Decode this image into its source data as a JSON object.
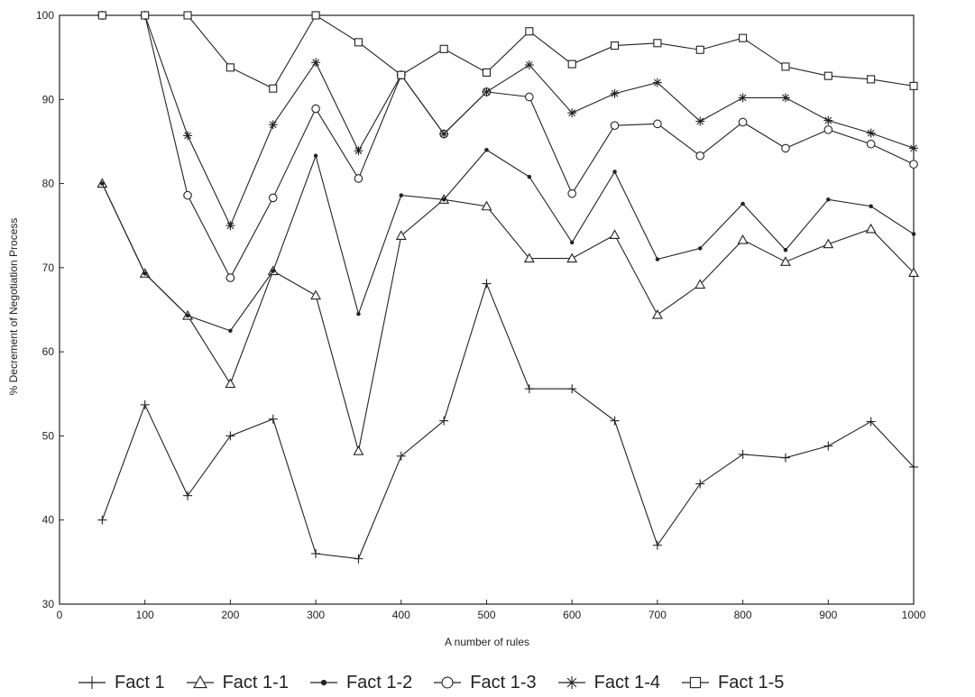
{
  "chart_data": {
    "type": "line",
    "title": "",
    "xlabel": "A number of rules",
    "ylabel": "% Decrement of Negotiation Process",
    "xlim": [
      0,
      1000
    ],
    "ylim": [
      30,
      100
    ],
    "x_ticks": [
      0,
      100,
      200,
      300,
      400,
      500,
      600,
      700,
      800,
      900,
      1000
    ],
    "y_ticks": [
      30,
      40,
      50,
      60,
      70,
      80,
      90,
      100
    ],
    "grid": false,
    "legend_position": "bottom",
    "x": [
      50,
      100,
      150,
      200,
      250,
      300,
      350,
      400,
      450,
      500,
      550,
      600,
      650,
      700,
      750,
      800,
      850,
      900,
      950,
      1000
    ],
    "series": [
      {
        "name": "Fact 1",
        "marker": "plus",
        "values": [
          40,
          53.7,
          42.9,
          50,
          52,
          36,
          35.4,
          47.6,
          51.8,
          68.1,
          55.6,
          55.6,
          51.8,
          37,
          44.3,
          47.8,
          47.4,
          48.8,
          51.7,
          46.3
        ]
      },
      {
        "name": "Fact 1-1",
        "marker": "triangle",
        "values": [
          80,
          69.3,
          64.3,
          56.2,
          69.6,
          66.7,
          48.2,
          73.8,
          78.1,
          77.3,
          71.1,
          71.1,
          73.9,
          64.4,
          68,
          73.3,
          70.7,
          72.8,
          74.6,
          69.4
        ]
      },
      {
        "name": "Fact 1-2",
        "marker": "dot",
        "values": [
          80,
          69.3,
          64.3,
          62.5,
          69.6,
          83.3,
          64.5,
          78.6,
          78.1,
          84,
          80.8,
          73,
          81.4,
          71,
          72.3,
          77.6,
          72.1,
          78.1,
          77.3,
          74
        ]
      },
      {
        "name": "Fact 1-3",
        "marker": "circle",
        "values": [
          100,
          100,
          78.6,
          68.8,
          78.3,
          88.9,
          80.6,
          92.9,
          85.9,
          90.9,
          90.3,
          78.8,
          86.9,
          87.1,
          83.3,
          87.3,
          84.2,
          86.4,
          84.7,
          82.3
        ]
      },
      {
        "name": "Fact 1-4",
        "marker": "star",
        "values": [
          100,
          100,
          85.7,
          75,
          87,
          94.4,
          83.9,
          92.9,
          85.9,
          90.9,
          94.1,
          88.4,
          90.7,
          92,
          87.4,
          90.2,
          90.2,
          87.5,
          86,
          84.2
        ]
      },
      {
        "name": "Fact 1-5",
        "marker": "square",
        "values": [
          100,
          100,
          100,
          93.8,
          91.3,
          100,
          96.8,
          92.9,
          96,
          93.2,
          98.1,
          94.2,
          96.4,
          96.7,
          95.9,
          97.3,
          93.9,
          92.8,
          92.4,
          91.6
        ]
      }
    ]
  }
}
